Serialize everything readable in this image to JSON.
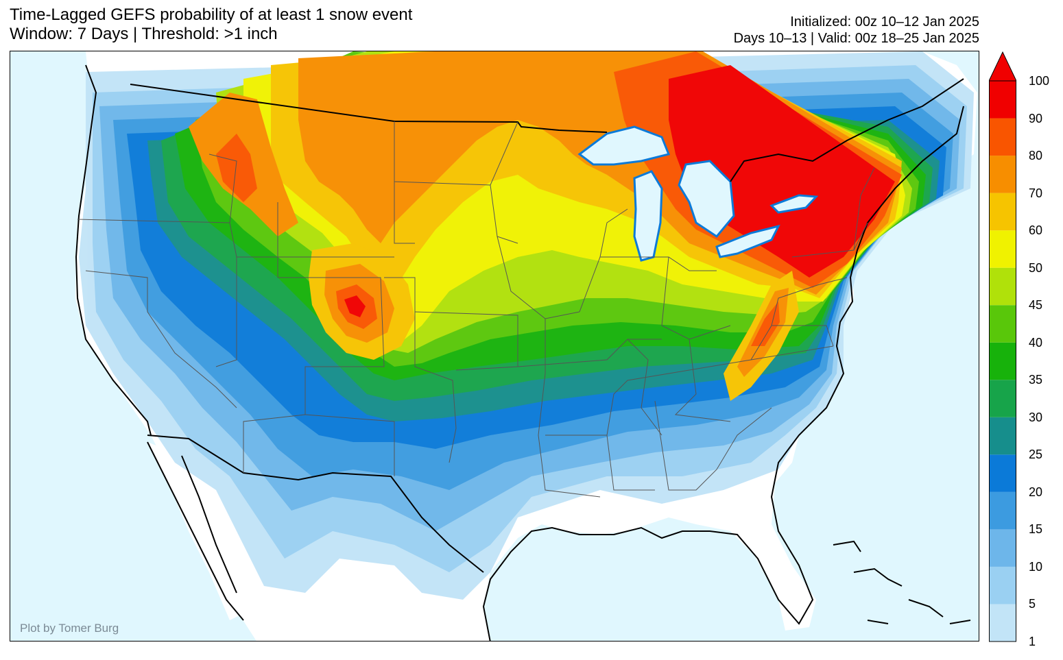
{
  "header": {
    "title_line1": "Time-Lagged GEFS probability of at least 1 snow event",
    "title_line2": "Window: 7 Days | Threshold: >1 inch",
    "initialized": "Initialized: 00z 10–12 Jan 2025",
    "valid": "Days 10–13 | Valid: 00z 18–25 Jan 2025"
  },
  "map": {
    "credit": "Plot by Tomer Burg",
    "ocean_color": "#e0f7fe",
    "land_color": "#ffffff"
  },
  "colorbar": {
    "levels": [
      "1",
      "5",
      "10",
      "15",
      "20",
      "25",
      "30",
      "35",
      "40",
      "45",
      "50",
      "60",
      "70",
      "80",
      "90",
      "100"
    ],
    "colors": [
      "#c2e4f7",
      "#9ad0f2",
      "#6db6ea",
      "#3c9be0",
      "#0b7ad8",
      "#168e8c",
      "#17a44a",
      "#17b20b",
      "#59c70a",
      "#b0e10a",
      "#f0f200",
      "#f6c400",
      "#f78e00",
      "#f95500",
      "#f00000"
    ],
    "extend": "max"
  }
}
